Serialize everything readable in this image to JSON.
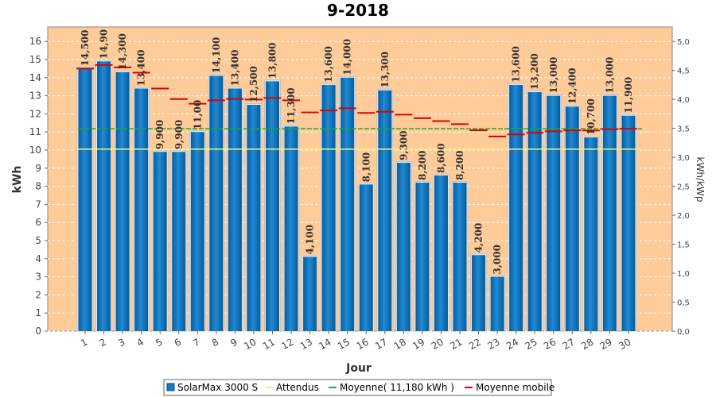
{
  "chart_data": {
    "type": "bar",
    "title": "9-2018",
    "xlabel": "Jour",
    "ylabel": "kWh",
    "y2label": "kWh/kWp",
    "ylim": [
      0,
      16.8
    ],
    "yticks": [
      0,
      1,
      2,
      3,
      4,
      5,
      6,
      7,
      8,
      9,
      10,
      11,
      12,
      13,
      14,
      15,
      16
    ],
    "y2lim": [
      0,
      5.25
    ],
    "y2ticks": [
      "0,0",
      "0,5",
      "1,0",
      "1,5",
      "2,0",
      "2,5",
      "3,0",
      "3,5",
      "4,0",
      "4,5",
      "5,0"
    ],
    "y2tick_values": [
      0,
      0.5,
      1.0,
      1.5,
      2.0,
      2.5,
      3.0,
      3.5,
      4.0,
      4.5,
      5.0
    ],
    "categories": [
      "1",
      "2",
      "3",
      "4",
      "5",
      "6",
      "7",
      "8",
      "9",
      "10",
      "11",
      "12",
      "13",
      "14",
      "15",
      "16",
      "17",
      "18",
      "19",
      "20",
      "21",
      "22",
      "23",
      "24",
      "25",
      "26",
      "27",
      "28",
      "29",
      "30"
    ],
    "series": [
      {
        "name": "SolarMax 3000 S",
        "values": [
          14.5,
          14.9,
          14.3,
          13.4,
          9.9,
          9.9,
          11.0,
          14.1,
          13.4,
          12.5,
          13.8,
          11.3,
          4.1,
          13.6,
          14.0,
          8.1,
          13.3,
          9.3,
          8.2,
          8.6,
          8.2,
          4.2,
          3.0,
          13.6,
          13.2,
          13.0,
          12.4,
          10.7,
          13.0,
          11.9
        ],
        "labels": [
          "14,500",
          "14,90",
          "14,300",
          "13,400",
          "9,900",
          "9,900",
          "11,00",
          "14,100",
          "13,400",
          "12,500",
          "13,800",
          "11,300",
          "4,100",
          "13,600",
          "14,000",
          "8,100",
          "13,300",
          "9,300",
          "8,200",
          "8,600",
          "8,200",
          "4,200",
          "3,000",
          "13,600",
          "13,200",
          "13,000",
          "12,400",
          "10,700",
          "13,000",
          "11,900"
        ],
        "color": "#1a7bbf"
      },
      {
        "name": "Attendus",
        "value": 10.05,
        "color": "#f5f080"
      },
      {
        "name": "Moyenne( 11,180 kWh )",
        "value": 11.18,
        "color": "#22aa22"
      },
      {
        "name": "Moyenne mobile",
        "values": [
          14.5,
          14.7,
          14.57,
          14.28,
          13.4,
          12.82,
          12.56,
          12.75,
          12.82,
          12.79,
          12.88,
          12.75,
          12.08,
          12.19,
          12.31,
          12.05,
          12.12,
          11.96,
          11.76,
          11.6,
          11.43,
          11.1,
          10.75,
          10.87,
          10.96,
          11.04,
          11.09,
          11.08,
          11.15,
          11.18
        ],
        "color": "#dd0000"
      }
    ],
    "legend_position": "bottom",
    "grid": true,
    "plot_background": "#ffcc99"
  }
}
